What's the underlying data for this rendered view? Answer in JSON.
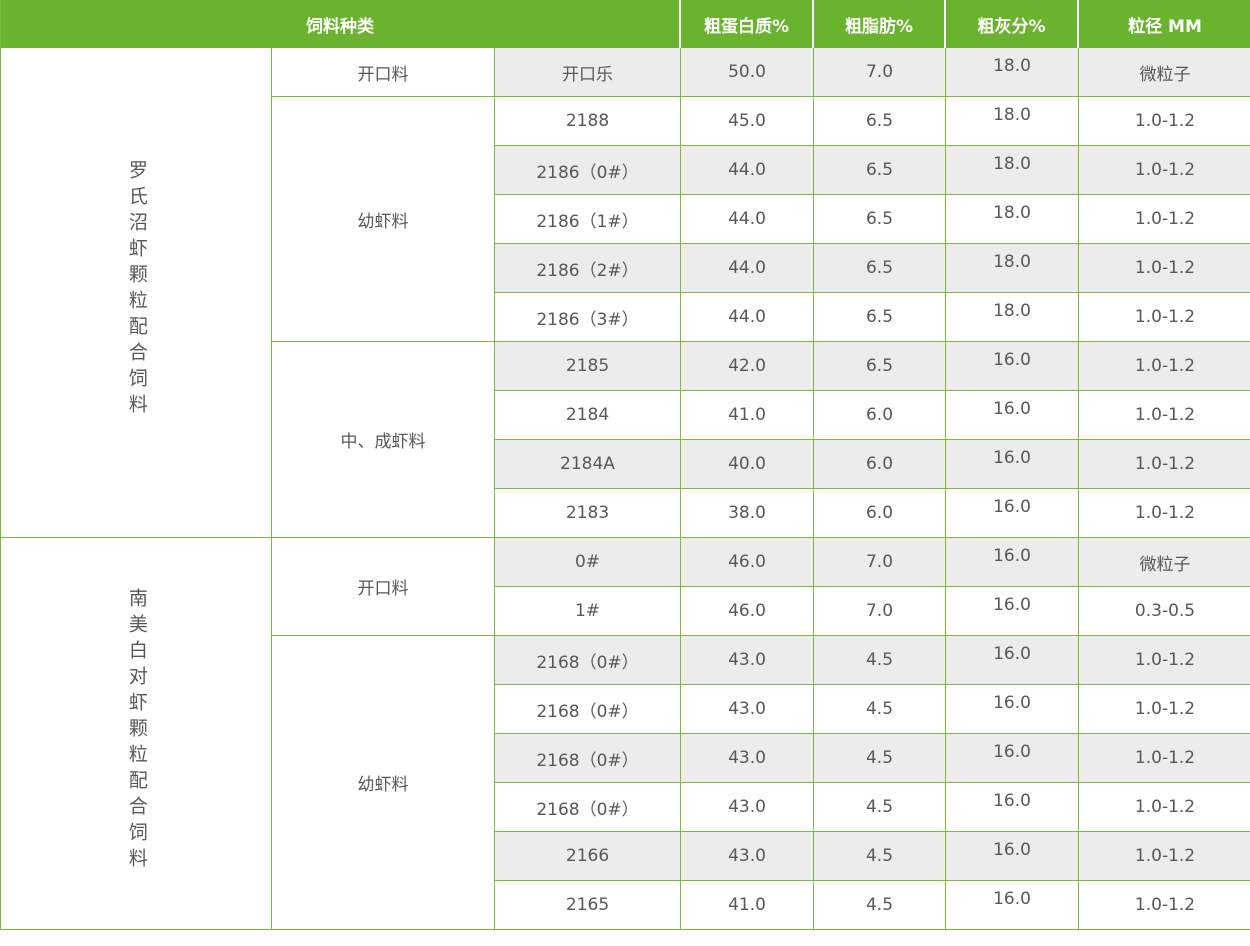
{
  "colors": {
    "header_bg": "#6ab32e",
    "border": "#7db842",
    "stripe": "#ececec",
    "text": "#595757",
    "header_text": "#ffffff"
  },
  "header": {
    "feed_type": "饲料种类",
    "columns": [
      "粗蛋白质%",
      "粗脂肪%",
      "粗灰分%",
      "粒径 MM"
    ]
  },
  "groups": [
    {
      "name": "罗氏沼虾颗粒配合饲料",
      "subgroups": [
        {
          "name": "开口料",
          "rows": [
            {
              "product": "开口乐",
              "protein": "50.0",
              "fat": "7.0",
              "ash": "18.0",
              "size": "微粒子"
            }
          ]
        },
        {
          "name": "幼虾料",
          "rows": [
            {
              "product": "2188",
              "protein": "45.0",
              "fat": "6.5",
              "ash": "18.0",
              "size": "1.0-1.2"
            },
            {
              "product": "2186（0#）",
              "protein": "44.0",
              "fat": "6.5",
              "ash": "18.0",
              "size": "1.0-1.2"
            },
            {
              "product": "2186（1#）",
              "protein": "44.0",
              "fat": "6.5",
              "ash": "18.0",
              "size": "1.0-1.2"
            },
            {
              "product": "2186（2#）",
              "protein": "44.0",
              "fat": "6.5",
              "ash": "18.0",
              "size": "1.0-1.2"
            },
            {
              "product": "2186（3#）",
              "protein": "44.0",
              "fat": "6.5",
              "ash": "18.0",
              "size": "1.0-1.2"
            }
          ]
        },
        {
          "name": "中、成虾料",
          "rows": [
            {
              "product": "2185",
              "protein": "42.0",
              "fat": "6.5",
              "ash": "16.0",
              "size": "1.0-1.2"
            },
            {
              "product": "2184",
              "protein": "41.0",
              "fat": "6.0",
              "ash": "16.0",
              "size": "1.0-1.2"
            },
            {
              "product": "2184A",
              "protein": "40.0",
              "fat": "6.0",
              "ash": "16.0",
              "size": "1.0-1.2"
            },
            {
              "product": "2183",
              "protein": "38.0",
              "fat": "6.0",
              "ash": "16.0",
              "size": "1.0-1.2"
            }
          ]
        }
      ]
    },
    {
      "name": "南美白对虾颗粒配合饲料",
      "subgroups": [
        {
          "name": "开口料",
          "rows": [
            {
              "product": "0#",
              "protein": "46.0",
              "fat": "7.0",
              "ash": "16.0",
              "size": "微粒子"
            },
            {
              "product": "1#",
              "protein": "46.0",
              "fat": "7.0",
              "ash": "16.0",
              "size": "0.3-0.5"
            }
          ]
        },
        {
          "name": "幼虾料",
          "rows": [
            {
              "product": "2168（0#）",
              "protein": "43.0",
              "fat": "4.5",
              "ash": "16.0",
              "size": "1.0-1.2"
            },
            {
              "product": "2168（0#）",
              "protein": "43.0",
              "fat": "4.5",
              "ash": "16.0",
              "size": "1.0-1.2"
            },
            {
              "product": "2168（0#）",
              "protein": "43.0",
              "fat": "4.5",
              "ash": "16.0",
              "size": "1.0-1.2"
            },
            {
              "product": "2168（0#）",
              "protein": "43.0",
              "fat": "4.5",
              "ash": "16.0",
              "size": "1.0-1.2"
            },
            {
              "product": "2166",
              "protein": "43.0",
              "fat": "4.5",
              "ash": "16.0",
              "size": "1.0-1.2"
            },
            {
              "product": "2165",
              "protein": "41.0",
              "fat": "4.5",
              "ash": "16.0",
              "size": "1.0-1.2"
            }
          ]
        }
      ]
    }
  ]
}
